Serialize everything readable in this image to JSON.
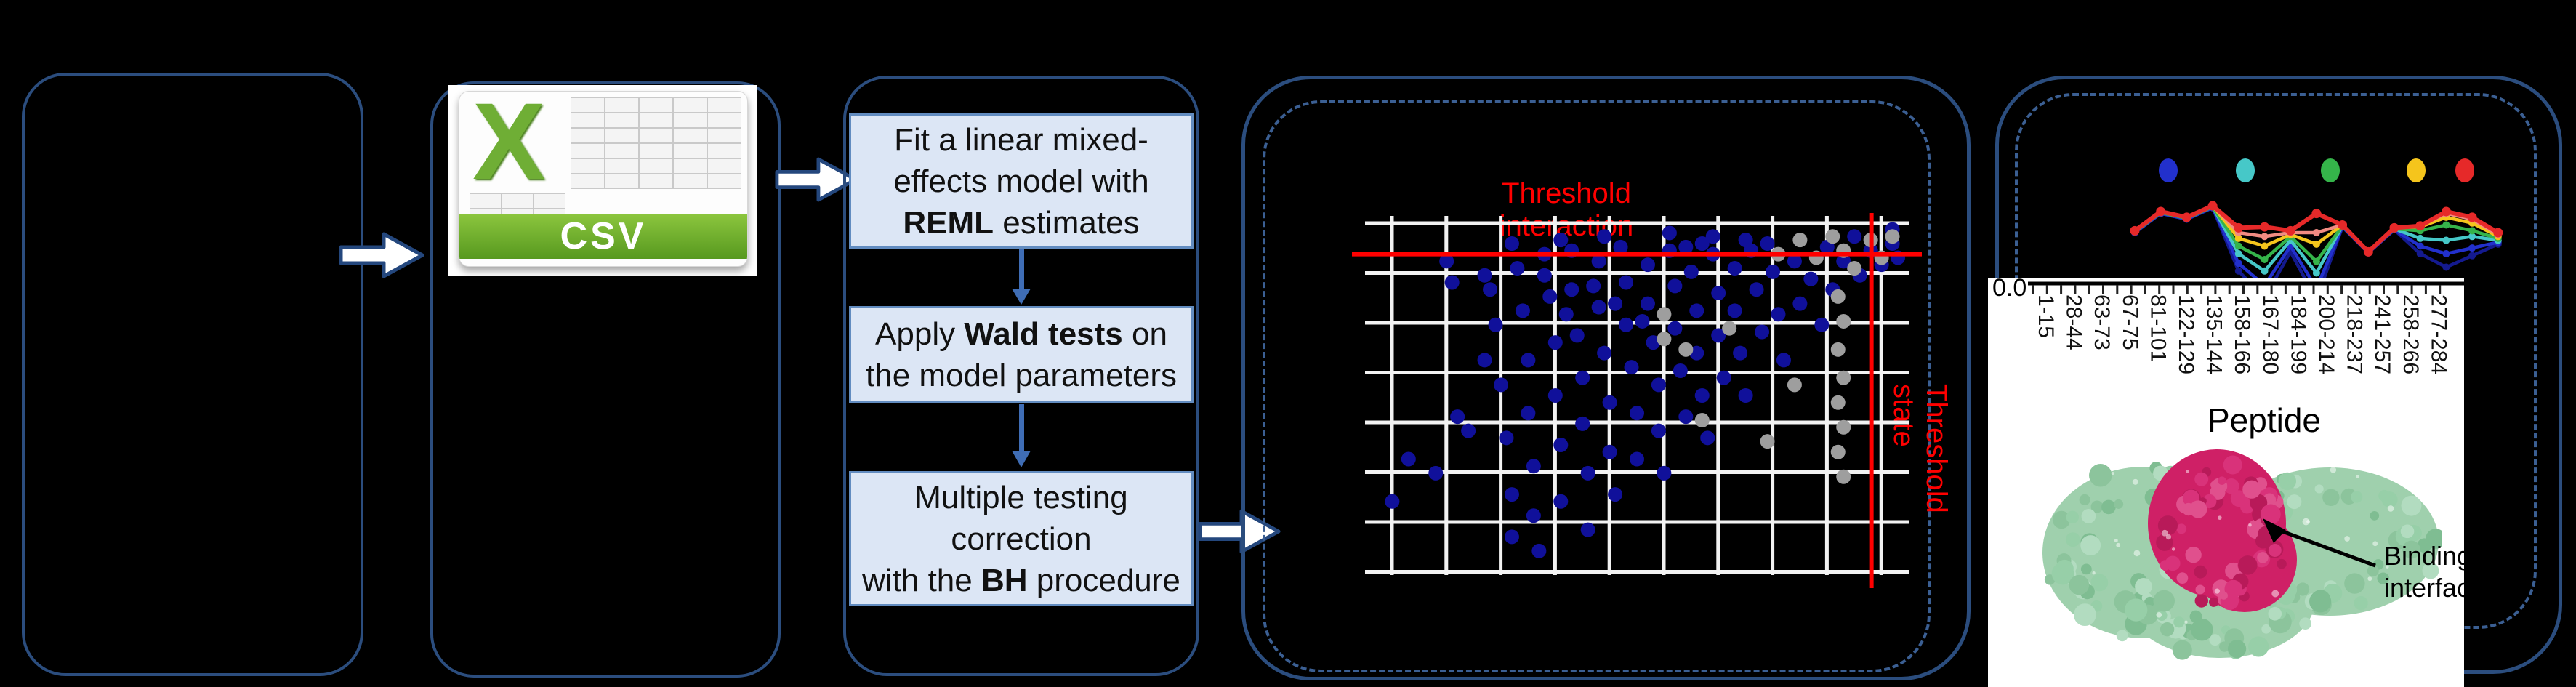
{
  "figure": {
    "csv_icon": {
      "letter": "X",
      "label": "CSV"
    },
    "flowchart": {
      "box1_line1": "Fit a linear mixed-",
      "box1_line2": "effects model with",
      "box1_line3_bold": "REML",
      "box1_line3_rest": " estimates",
      "box2_line1_pre": "Apply ",
      "box2_line1_bold": "Wald tests",
      "box2_line1_post": " on",
      "box2_line2": "the model parameters",
      "box3_line1": "Multiple testing",
      "box3_line2": "correction",
      "box3_line3_pre": "with the ",
      "box3_line3_bold": "BH",
      "box3_line3_post": " procedure"
    },
    "annotations": {
      "binding_interface": "Binding interface"
    }
  },
  "colors": {
    "panel_border": "#2b4d7e",
    "dashed_border": "#3b5f93",
    "box_fill": "#dce6f5",
    "flow_arrow": "#3f6db5",
    "threshold_red": "#ff0000",
    "dot_blue": "#10109a",
    "dot_gray": "#9e9e9e",
    "csv_green": "#6fae35"
  },
  "chart_data": [
    {
      "type": "scatter",
      "threshold_interaction_label": "Threshold interaction",
      "threshold_state_label": "Threshold state",
      "threshold_interaction_y_frac": 0.1,
      "threshold_state_x_frac": 0.932,
      "grid": true,
      "points_blue": [
        [
          0.05,
          0.8
        ],
        [
          0.08,
          0.68
        ],
        [
          0.13,
          0.72
        ],
        [
          0.15,
          0.12
        ],
        [
          0.16,
          0.18
        ],
        [
          0.17,
          0.56
        ],
        [
          0.19,
          0.6
        ],
        [
          0.22,
          0.16
        ],
        [
          0.22,
          0.4
        ],
        [
          0.23,
          0.2
        ],
        [
          0.24,
          0.3
        ],
        [
          0.25,
          0.47
        ],
        [
          0.26,
          0.62
        ],
        [
          0.27,
          0.07
        ],
        [
          0.27,
          0.78
        ],
        [
          0.27,
          0.9
        ],
        [
          0.28,
          0.14
        ],
        [
          0.29,
          0.26
        ],
        [
          0.3,
          0.4
        ],
        [
          0.3,
          0.55
        ],
        [
          0.31,
          0.7
        ],
        [
          0.31,
          0.84
        ],
        [
          0.32,
          0.94
        ],
        [
          0.33,
          0.1
        ],
        [
          0.33,
          0.16
        ],
        [
          0.34,
          0.22
        ],
        [
          0.35,
          0.35
        ],
        [
          0.35,
          0.5
        ],
        [
          0.36,
          0.06
        ],
        [
          0.36,
          0.64
        ],
        [
          0.36,
          0.8
        ],
        [
          0.37,
          0.27
        ],
        [
          0.38,
          0.09
        ],
        [
          0.38,
          0.2
        ],
        [
          0.39,
          0.33
        ],
        [
          0.4,
          0.45
        ],
        [
          0.4,
          0.58
        ],
        [
          0.41,
          0.72
        ],
        [
          0.41,
          0.88
        ],
        [
          0.42,
          0.19
        ],
        [
          0.43,
          0.12
        ],
        [
          0.43,
          0.25
        ],
        [
          0.44,
          0.05
        ],
        [
          0.44,
          0.38
        ],
        [
          0.45,
          0.52
        ],
        [
          0.45,
          0.66
        ],
        [
          0.46,
          0.24
        ],
        [
          0.46,
          0.78
        ],
        [
          0.47,
          0.08
        ],
        [
          0.48,
          0.18
        ],
        [
          0.48,
          0.3
        ],
        [
          0.49,
          0.42
        ],
        [
          0.5,
          0.55
        ],
        [
          0.5,
          0.68
        ],
        [
          0.51,
          0.29
        ],
        [
          0.52,
          0.13
        ],
        [
          0.52,
          0.24
        ],
        [
          0.53,
          0.35
        ],
        [
          0.54,
          0.47
        ],
        [
          0.54,
          0.6
        ],
        [
          0.55,
          0.72
        ],
        [
          0.56,
          0.04
        ],
        [
          0.56,
          0.09
        ],
        [
          0.57,
          0.19
        ],
        [
          0.57,
          0.31
        ],
        [
          0.58,
          0.43
        ],
        [
          0.59,
          0.08
        ],
        [
          0.59,
          0.56
        ],
        [
          0.6,
          0.15
        ],
        [
          0.61,
          0.26
        ],
        [
          0.61,
          0.38
        ],
        [
          0.62,
          0.07
        ],
        [
          0.62,
          0.5
        ],
        [
          0.63,
          0.62
        ],
        [
          0.64,
          0.05
        ],
        [
          0.64,
          0.1
        ],
        [
          0.65,
          0.21
        ],
        [
          0.65,
          0.33
        ],
        [
          0.66,
          0.45
        ],
        [
          0.68,
          0.14
        ],
        [
          0.68,
          0.26
        ],
        [
          0.69,
          0.38
        ],
        [
          0.7,
          0.06
        ],
        [
          0.7,
          0.5
        ],
        [
          0.71,
          0.09
        ],
        [
          0.72,
          0.2
        ],
        [
          0.73,
          0.32
        ],
        [
          0.74,
          0.07
        ],
        [
          0.75,
          0.15
        ],
        [
          0.76,
          0.27
        ],
        [
          0.77,
          0.4
        ],
        [
          0.79,
          0.12
        ],
        [
          0.8,
          0.24
        ],
        [
          0.82,
          0.17
        ],
        [
          0.84,
          0.3
        ],
        [
          0.85,
          0.08
        ],
        [
          0.86,
          0.2
        ],
        [
          0.88,
          0.12
        ],
        [
          0.9,
          0.05
        ],
        [
          0.91,
          0.16
        ],
        [
          0.93,
          0.09
        ],
        [
          0.95,
          0.13
        ],
        [
          0.97,
          0.03
        ],
        [
          0.97,
          0.07
        ],
        [
          0.98,
          0.11
        ]
      ],
      "points_gray": [
        [
          0.76,
          0.1
        ],
        [
          0.8,
          0.06
        ],
        [
          0.83,
          0.11
        ],
        [
          0.86,
          0.05
        ],
        [
          0.88,
          0.09
        ],
        [
          0.9,
          0.14
        ],
        [
          0.93,
          0.06
        ],
        [
          0.95,
          0.11
        ],
        [
          0.97,
          0.05
        ],
        [
          0.87,
          0.22
        ],
        [
          0.88,
          0.29
        ],
        [
          0.87,
          0.37
        ],
        [
          0.88,
          0.45
        ],
        [
          0.87,
          0.52
        ],
        [
          0.88,
          0.59
        ],
        [
          0.87,
          0.66
        ],
        [
          0.88,
          0.73
        ],
        [
          0.55,
          0.27
        ],
        [
          0.55,
          0.34
        ],
        [
          0.59,
          0.37
        ],
        [
          0.67,
          0.31
        ],
        [
          0.74,
          0.63
        ],
        [
          0.62,
          0.57
        ],
        [
          0.79,
          0.47
        ]
      ]
    },
    {
      "type": "line",
      "categories": [
        "1-15",
        "28-44",
        "63-73",
        "67-75",
        "81-101",
        "122-129",
        "135-144",
        "158-166",
        "167-180",
        "184-199",
        "200-214",
        "218-237",
        "241-257",
        "258-266",
        "277-284"
      ],
      "xlabel": "Peptide",
      "y_axis_tick": "0.0",
      "legend_position": "top",
      "legend_colors": [
        "#2230cc",
        "#46c8c8",
        "#35b44a",
        "#f5c51c",
        "#e62929"
      ],
      "series": [
        {
          "color": "#141a8f",
          "values": [
            0.5,
            0.7,
            0.64,
            0.76,
            0.1,
            -0.18,
            0.3,
            -0.2,
            0.56,
            0.29,
            0.53,
            0.28,
            0.14,
            0.26,
            0.38
          ]
        },
        {
          "color": "#2230cc",
          "values": [
            0.5,
            0.7,
            0.64,
            0.76,
            0.18,
            -0.05,
            0.36,
            -0.08,
            0.56,
            0.29,
            0.53,
            0.36,
            0.28,
            0.34,
            0.4
          ]
        },
        {
          "color": "#46c8c8",
          "values": [
            0.51,
            0.71,
            0.65,
            0.77,
            0.28,
            0.1,
            0.42,
            0.08,
            0.57,
            0.3,
            0.54,
            0.44,
            0.42,
            0.46,
            0.42
          ]
        },
        {
          "color": "#35b44a",
          "values": [
            0.51,
            0.71,
            0.65,
            0.77,
            0.36,
            0.22,
            0.46,
            0.2,
            0.57,
            0.3,
            0.54,
            0.52,
            0.58,
            0.52,
            0.44
          ]
        },
        {
          "color": "#f5c51c",
          "values": [
            0.52,
            0.72,
            0.66,
            0.78,
            0.44,
            0.36,
            0.48,
            0.38,
            0.58,
            0.3,
            0.55,
            0.56,
            0.66,
            0.6,
            0.46
          ]
        },
        {
          "color": "#f28b82",
          "values": [
            0.52,
            0.72,
            0.66,
            0.78,
            0.5,
            0.46,
            0.5,
            0.5,
            0.58,
            0.3,
            0.55,
            0.57,
            0.7,
            0.64,
            0.48
          ]
        },
        {
          "color": "#e62929",
          "values": [
            0.52,
            0.72,
            0.66,
            0.78,
            0.55,
            0.56,
            0.52,
            0.7,
            0.58,
            0.3,
            0.55,
            0.57,
            0.72,
            0.66,
            0.5
          ]
        }
      ]
    }
  ]
}
